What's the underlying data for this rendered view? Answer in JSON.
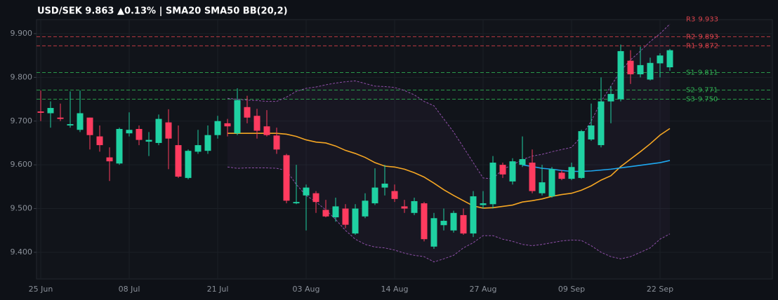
{
  "chart_data": {
    "type": "candlestick",
    "title": "USD/SEK  9.863  ▲0.13%  |  SMA20  SMA50  BB(20,2)",
    "categories": [
      "25 Jun",
      null,
      null,
      null,
      null,
      null,
      null,
      null,
      null,
      "08 Jul",
      null,
      null,
      null,
      null,
      null,
      null,
      null,
      null,
      "21 Jul",
      null,
      null,
      null,
      null,
      null,
      null,
      null,
      null,
      "03 Aug",
      null,
      null,
      null,
      null,
      null,
      null,
      null,
      null,
      "14 Aug",
      null,
      null,
      null,
      null,
      null,
      null,
      null,
      null,
      "27 Aug",
      null,
      null,
      null,
      null,
      null,
      null,
      null,
      null,
      "09 Sep",
      null,
      null,
      null,
      null,
      null,
      null,
      null,
      null,
      "22 Sep",
      null
    ],
    "open": [
      9.722,
      9.718,
      9.708,
      9.69,
      9.68,
      9.708,
      9.665,
      9.617,
      9.603,
      9.672,
      9.682,
      9.653,
      9.65,
      9.697,
      9.645,
      9.57,
      9.63,
      9.632,
      9.668,
      9.695,
      9.672,
      9.732,
      9.712,
      9.688,
      9.667,
      9.622,
      9.512,
      9.53,
      9.535,
      9.497,
      9.48,
      9.5,
      9.443,
      9.482,
      9.512,
      9.548,
      9.54,
      9.505,
      9.49,
      9.512,
      9.413,
      9.462,
      9.45,
      9.485,
      9.443,
      9.508,
      9.51,
      9.6,
      9.562,
      9.6,
      9.605,
      9.535,
      9.528,
      9.582,
      9.568,
      9.57,
      9.658,
      9.645,
      9.745,
      9.75,
      9.838,
      9.807,
      9.795,
      9.832,
      9.823
    ],
    "high": [
      9.77,
      9.745,
      9.74,
      9.768,
      9.77,
      9.708,
      9.69,
      9.64,
      9.685,
      9.72,
      9.69,
      9.675,
      9.715,
      9.727,
      9.69,
      9.635,
      9.68,
      9.69,
      9.712,
      9.705,
      9.775,
      9.758,
      9.728,
      9.725,
      9.685,
      9.625,
      9.6,
      9.555,
      9.54,
      9.52,
      9.525,
      9.51,
      9.51,
      9.535,
      9.592,
      9.6,
      9.555,
      9.52,
      9.525,
      9.515,
      9.49,
      9.5,
      9.495,
      9.5,
      9.54,
      9.54,
      9.62,
      9.605,
      9.615,
      9.665,
      9.635,
      9.6,
      9.595,
      9.588,
      9.605,
      9.68,
      9.74,
      9.8,
      9.78,
      9.875,
      9.862,
      9.87,
      9.845,
      9.855,
      9.865
    ],
    "low": [
      9.7,
      9.685,
      9.7,
      9.685,
      9.675,
      9.635,
      9.63,
      9.563,
      9.6,
      9.665,
      9.645,
      9.62,
      9.645,
      9.59,
      9.57,
      9.567,
      9.625,
      9.625,
      9.66,
      9.665,
      9.668,
      9.695,
      9.66,
      9.665,
      9.625,
      9.512,
      9.51,
      9.45,
      9.49,
      9.48,
      9.47,
      9.455,
      9.44,
      9.478,
      9.508,
      9.53,
      9.515,
      9.49,
      9.485,
      9.425,
      9.408,
      9.45,
      9.445,
      9.44,
      9.435,
      9.5,
      9.5,
      9.57,
      9.555,
      9.595,
      9.535,
      9.53,
      9.525,
      9.565,
      9.565,
      9.568,
      9.655,
      9.64,
      9.695,
      9.745,
      9.785,
      9.8,
      9.793,
      9.8,
      9.815
    ],
    "close": [
      9.719,
      9.73,
      9.705,
      9.693,
      9.718,
      9.668,
      9.645,
      9.608,
      9.682,
      9.68,
      9.657,
      9.657,
      9.705,
      9.66,
      9.573,
      9.632,
      9.645,
      9.668,
      9.7,
      9.688,
      9.748,
      9.708,
      9.678,
      9.668,
      9.635,
      9.518,
      9.515,
      9.548,
      9.515,
      9.482,
      9.505,
      9.463,
      9.5,
      9.518,
      9.548,
      9.557,
      9.522,
      9.5,
      9.517,
      9.43,
      9.478,
      9.472,
      9.49,
      9.443,
      9.528,
      9.512,
      9.605,
      9.578,
      9.608,
      9.613,
      9.54,
      9.56,
      9.59,
      9.568,
      9.595,
      9.677,
      9.69,
      9.745,
      9.762,
      9.86,
      9.807,
      9.828,
      9.833,
      9.85,
      9.862
    ],
    "up_color": "#1fd1a2",
    "down_color": "#ff3b5f",
    "overlays": [
      {
        "color": "#f5a623",
        "dashed": false,
        "values": [
          null,
          null,
          null,
          null,
          null,
          null,
          null,
          null,
          null,
          null,
          null,
          null,
          null,
          null,
          null,
          null,
          null,
          null,
          null,
          9.672,
          9.672,
          9.672,
          9.672,
          9.672,
          9.672,
          9.67,
          9.665,
          9.657,
          9.652,
          9.65,
          9.643,
          9.633,
          9.626,
          9.617,
          9.605,
          9.597,
          9.595,
          9.59,
          9.582,
          9.572,
          9.558,
          9.543,
          9.53,
          9.518,
          9.506,
          9.501,
          9.502,
          9.505,
          9.508,
          9.515,
          9.518,
          9.522,
          9.528,
          9.532,
          9.535,
          9.542,
          9.552,
          9.565,
          9.575,
          9.596,
          9.613,
          9.63,
          9.648,
          9.668,
          9.683
        ]
      },
      {
        "color": "#1ea8f0",
        "dashed": false,
        "values": [
          null,
          null,
          null,
          null,
          null,
          null,
          null,
          null,
          null,
          null,
          null,
          null,
          null,
          null,
          null,
          null,
          null,
          null,
          null,
          null,
          null,
          null,
          null,
          null,
          null,
          null,
          null,
          null,
          null,
          null,
          null,
          null,
          null,
          null,
          null,
          null,
          null,
          null,
          null,
          null,
          null,
          null,
          null,
          null,
          null,
          null,
          null,
          null,
          null,
          9.6,
          9.596,
          9.592,
          9.59,
          9.587,
          9.585,
          9.585,
          9.586,
          9.588,
          9.59,
          9.593,
          9.596,
          9.599,
          9.602,
          9.605,
          9.61
        ]
      },
      {
        "color": "#8e4fa8",
        "dashed": true,
        "values": [
          null,
          null,
          null,
          null,
          null,
          null,
          null,
          null,
          null,
          null,
          null,
          null,
          null,
          null,
          null,
          null,
          null,
          null,
          null,
          9.752,
          9.75,
          9.748,
          9.747,
          9.745,
          9.745,
          9.755,
          9.768,
          9.775,
          9.778,
          9.783,
          9.787,
          9.79,
          9.792,
          9.786,
          9.78,
          9.779,
          9.777,
          9.77,
          9.76,
          9.745,
          9.735,
          9.705,
          9.675,
          9.64,
          9.605,
          9.57,
          9.568,
          9.59,
          9.6,
          9.612,
          9.62,
          9.624,
          9.63,
          9.635,
          9.64,
          9.665,
          9.7,
          9.745,
          9.78,
          9.815,
          9.84,
          9.86,
          9.882,
          9.9,
          9.922
        ]
      },
      {
        "color": "#8e4fa8",
        "dashed": true,
        "values": [
          null,
          null,
          null,
          null,
          null,
          null,
          null,
          null,
          null,
          null,
          null,
          null,
          null,
          null,
          null,
          null,
          null,
          null,
          null,
          9.595,
          9.592,
          9.593,
          9.593,
          9.593,
          9.592,
          9.587,
          9.555,
          9.53,
          9.515,
          9.497,
          9.475,
          9.45,
          9.43,
          9.418,
          9.412,
          9.41,
          9.405,
          9.398,
          9.393,
          9.39,
          9.378,
          9.385,
          9.393,
          9.41,
          9.422,
          9.438,
          9.438,
          9.43,
          9.425,
          9.418,
          9.415,
          9.418,
          9.422,
          9.426,
          9.428,
          9.427,
          9.415,
          9.4,
          9.39,
          9.385,
          9.39,
          9.4,
          9.41,
          9.43,
          9.442
        ]
      }
    ],
    "levels": [
      {
        "name": "R3",
        "value": 9.933,
        "label": "9.933",
        "color": "#d9414a"
      },
      {
        "name": "R2",
        "value": 9.893,
        "label": "9.893",
        "color": "#d9414a"
      },
      {
        "name": "R1",
        "value": 9.872,
        "label": "9.872",
        "color": "#d9414a"
      },
      {
        "name": "S1",
        "value": 9.811,
        "label": "9.811",
        "color": "#2fae52"
      },
      {
        "name": "S2",
        "value": 9.771,
        "label": "9.771",
        "color": "#2fae52"
      },
      {
        "name": "S3",
        "value": 9.75,
        "label": "9.750",
        "color": "#2fae52"
      }
    ],
    "ylim": [
      9.339,
      9.932
    ],
    "yticks": [
      {
        "value": 9.4,
        "label": "9.400"
      },
      {
        "value": 9.5,
        "label": "9.500"
      },
      {
        "value": 9.6,
        "label": "9.600"
      },
      {
        "value": 9.7,
        "label": "9.700"
      },
      {
        "value": 9.8,
        "label": "9.800"
      },
      {
        "value": 9.9,
        "label": "9.900"
      }
    ],
    "grid": true
  }
}
